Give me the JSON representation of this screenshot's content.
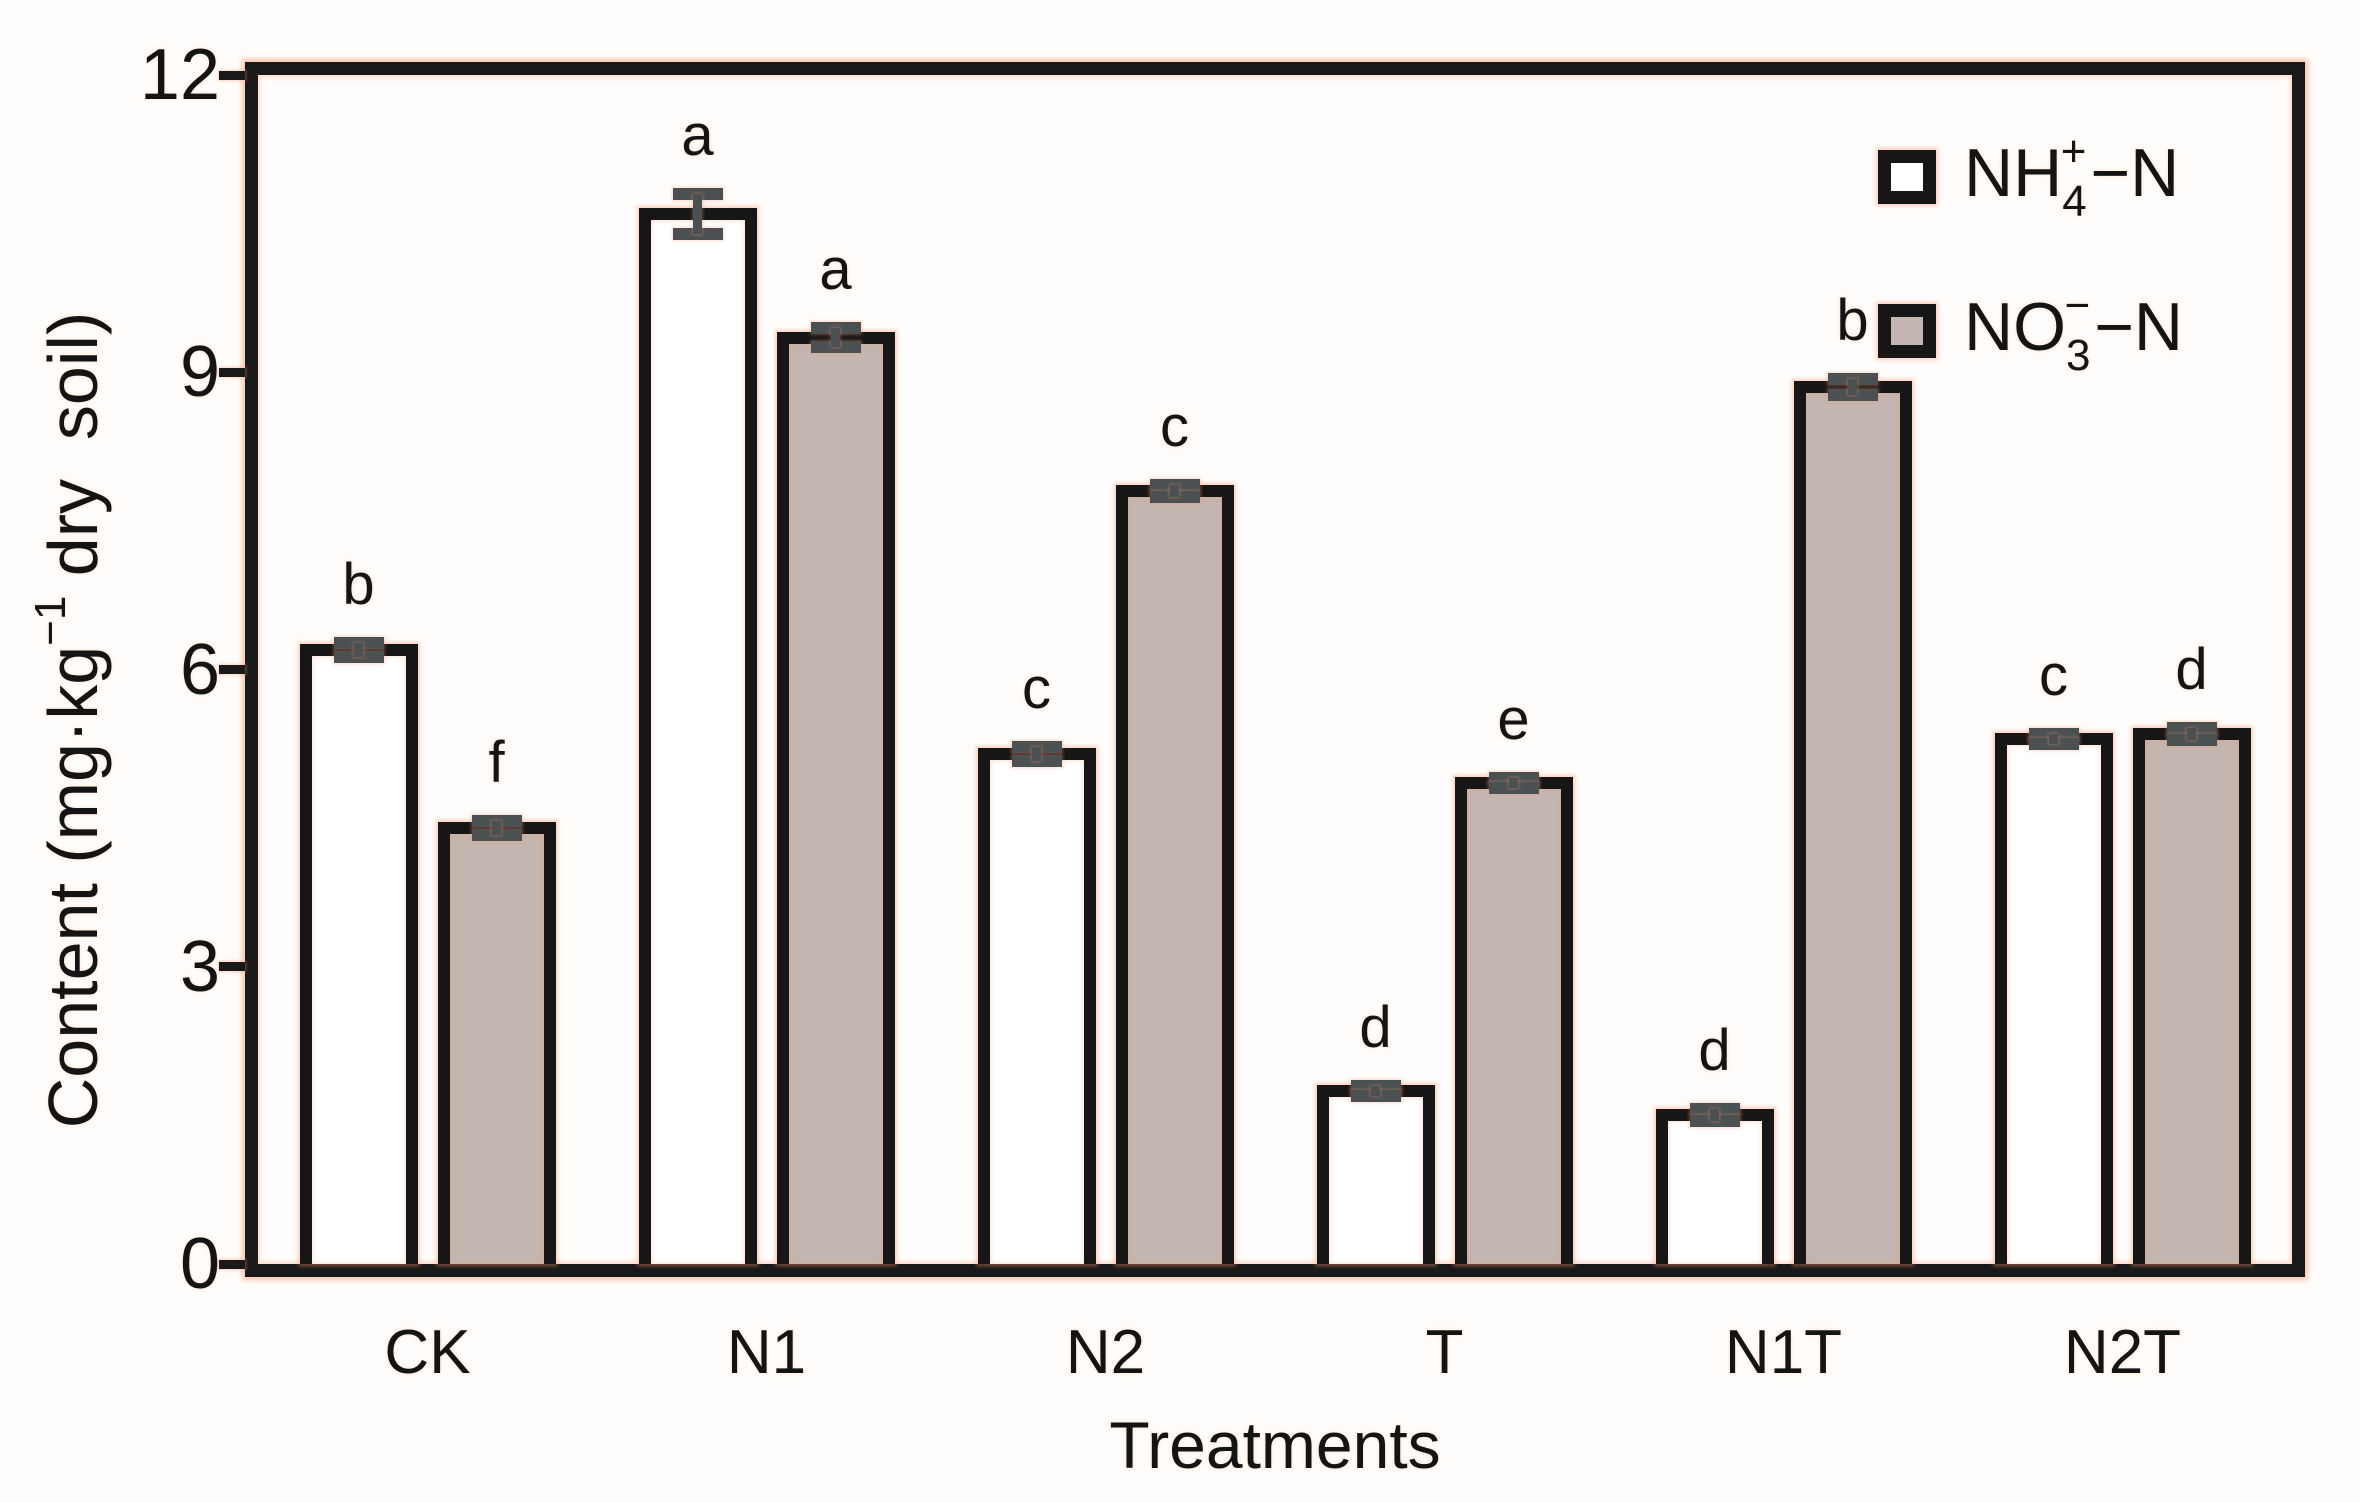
{
  "figure": {
    "ylabel": {
      "pre": "Content (mg·kg",
      "sup": "−1",
      "post": " dry  soil)"
    },
    "xlabel": "Treatments",
    "legend": [
      {
        "pre": "NH",
        "sub": "4",
        "sup": "+",
        "post": "−N"
      },
      {
        "pre": "NO",
        "sub": "3",
        "sup": "−",
        "post": "−N"
      }
    ]
  },
  "chart_data": {
    "type": "bar",
    "title": "",
    "xlabel": "Treatments",
    "ylabel": "Content (mg·kg−1 dry soil)",
    "ylim": [
      0,
      12
    ],
    "yticks": [
      0,
      3,
      6,
      9,
      12
    ],
    "ytick_labels": [
      "0",
      "3",
      "6",
      "9",
      "12"
    ],
    "grid": false,
    "legend_position": "top-right-inside",
    "categories": [
      "CK",
      "N1",
      "N2",
      "T",
      "N1T",
      "N2T"
    ],
    "series": [
      {
        "name": "NH4+-N",
        "key": "nh4-n",
        "fill": "#ffffff",
        "values": [
          6.2,
          10.6,
          5.15,
          1.75,
          1.5,
          5.3
        ],
        "errors": [
          0.07,
          0.2,
          0.07,
          0.05,
          0.06,
          0.05
        ],
        "letters": [
          "b",
          "a",
          "c",
          "d",
          "d",
          "c"
        ]
      },
      {
        "name": "NO3--N",
        "key": "no3-n",
        "fill": "#c4b6b0",
        "values": [
          4.4,
          9.35,
          7.8,
          4.85,
          8.85,
          5.35
        ],
        "errors": [
          0.07,
          0.1,
          0.06,
          0.05,
          0.08,
          0.06
        ],
        "letters": [
          "f",
          "a",
          "c",
          "e",
          "b",
          "d"
        ]
      }
    ],
    "colors": {
      "bar_border": "#161616",
      "axis": "#191919",
      "error_bar": "#4b5153",
      "halo": "#f8966e",
      "background": "#fffdfb"
    }
  }
}
